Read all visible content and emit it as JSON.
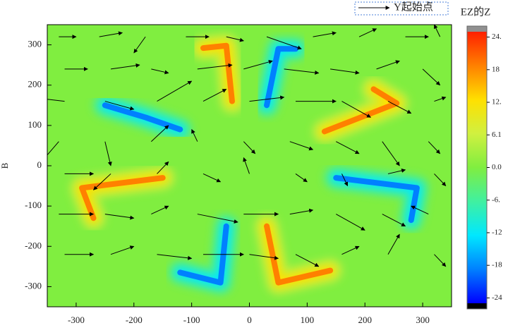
{
  "chart_data": {
    "type": "heatmap-vector",
    "ylabel": "B",
    "colorbar_title": "EZ的Z",
    "legend_label": "Y起始点",
    "xlim": [
      -350,
      350
    ],
    "ylim": [
      -350,
      350
    ],
    "xticks": [
      -300,
      -200,
      -100,
      0,
      100,
      200,
      300
    ],
    "yticks": [
      300,
      200,
      100,
      0,
      -100,
      -200,
      -300
    ],
    "clim": [
      -25.4,
      25.4
    ],
    "cticks": [
      {
        "value": 24.4,
        "label": "24."
      },
      {
        "value": 18.3,
        "label": "18"
      },
      {
        "value": 12.2,
        "label": "12."
      },
      6.1,
      {
        "value": 0,
        "label": "0.0"
      },
      {
        "value": -6.1,
        "label": "-6."
      },
      {
        "value": -12.2,
        "label": "-12"
      },
      {
        "value": -18.3,
        "label": "-18"
      },
      {
        "value": -24.4,
        "label": "-24"
      }
    ],
    "colormap": [
      "#0000ff",
      "#0080ff",
      "#00e8ff",
      "#40f0a0",
      "#80ee40",
      "#d0f040",
      "#ffe000",
      "#ff8000",
      "#ff2000"
    ],
    "background_value": 0,
    "features": [
      {
        "value": 22,
        "x": [
          -80,
          -40,
          -30
        ],
        "y": [
          292,
          298,
          160
        ]
      },
      {
        "value": -22,
        "x": [
          80,
          50,
          30
        ],
        "y": [
          290,
          290,
          150
        ]
      },
      {
        "value": 22,
        "x": [
          130,
          255,
          215
        ],
        "y": [
          85,
          155,
          190
        ]
      },
      {
        "value": -22,
        "x": [
          150,
          290,
          280
        ],
        "y": [
          -30,
          -55,
          -135
        ]
      },
      {
        "value": -22,
        "x": [
          -40,
          -50,
          -120
        ],
        "y": [
          -150,
          -290,
          -265
        ]
      },
      {
        "value": 22,
        "x": [
          30,
          50,
          140
        ],
        "y": [
          -150,
          -290,
          -260
        ]
      },
      {
        "value": 22,
        "x": [
          -150,
          -290,
          -270
        ],
        "y": [
          -30,
          -55,
          -130
        ]
      },
      {
        "value": -22,
        "x": [
          -250,
          -180,
          -120
        ],
        "y": [
          150,
          120,
          90
        ]
      }
    ],
    "vectors": {
      "x": [
        -330,
        -260,
        -180,
        -110,
        -40,
        30,
        110,
        190,
        270,
        330,
        -320,
        -240,
        -170,
        -90,
        -10,
        60,
        140,
        220,
        300,
        -320,
        -250,
        -160,
        -80,
        0,
        80,
        160,
        240,
        320,
        -330,
        -250,
        -170,
        -90,
        -10,
        70,
        150,
        230,
        310,
        -320,
        -240,
        -160,
        -80,
        0,
        80,
        160,
        240,
        320,
        -330,
        -250,
        -170,
        -90,
        -10,
        70,
        150,
        230,
        310,
        -320,
        -240,
        -160,
        -80,
        0,
        80,
        160,
        240,
        320
      ],
      "y": [
        320,
        320,
        320,
        320,
        320,
        320,
        320,
        320,
        320,
        320,
        240,
        240,
        240,
        240,
        240,
        240,
        240,
        240,
        240,
        160,
        160,
        160,
        160,
        160,
        160,
        160,
        160,
        160,
        60,
        60,
        60,
        60,
        60,
        60,
        60,
        60,
        60,
        -20,
        -20,
        -20,
        -20,
        -20,
        -20,
        -20,
        -20,
        -20,
        -120,
        -120,
        -120,
        -120,
        -120,
        -120,
        -120,
        -120,
        -120,
        -220,
        -220,
        -220,
        -220,
        -220,
        -220,
        -220,
        -220,
        -220
      ],
      "u": [
        30,
        40,
        -20,
        40,
        30,
        60,
        40,
        30,
        40,
        -10,
        40,
        50,
        30,
        60,
        50,
        60,
        50,
        40,
        30,
        -60,
        50,
        60,
        40,
        60,
        70,
        50,
        40,
        20,
        -30,
        10,
        30,
        -10,
        20,
        40,
        40,
        30,
        20,
        50,
        -30,
        20,
        30,
        -10,
        20,
        10,
        30,
        20,
        60,
        50,
        30,
        70,
        60,
        40,
        50,
        40,
        -30,
        50,
        40,
        60,
        70,
        50,
        40,
        30,
        20,
        20
      ],
      "v": [
        0,
        10,
        -40,
        0,
        -10,
        -30,
        10,
        20,
        0,
        30,
        0,
        10,
        -10,
        10,
        20,
        -10,
        -10,
        20,
        -40,
        10,
        -20,
        50,
        30,
        10,
        0,
        -40,
        -30,
        10,
        -50,
        -60,
        40,
        30,
        -30,
        -20,
        -30,
        -60,
        -30,
        0,
        -40,
        30,
        -20,
        40,
        -20,
        -30,
        10,
        -30,
        0,
        -10,
        20,
        -20,
        0,
        10,
        -40,
        -30,
        20,
        0,
        20,
        -10,
        0,
        -10,
        -30,
        20,
        50,
        -30
      ]
    }
  }
}
